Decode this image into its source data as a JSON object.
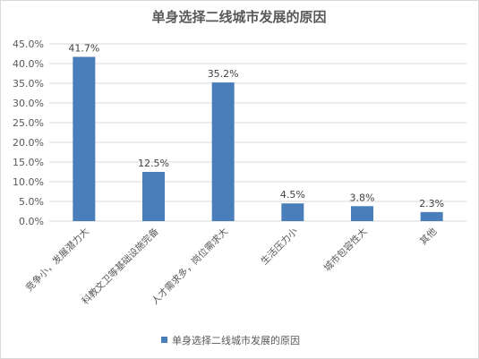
{
  "chart_data": {
    "type": "bar",
    "title": "单身选择二线城市发展的原因",
    "categories": [
      "竞争小，发展潜力大",
      "科教文卫等基础设施完备",
      "人才需求多，岗位需求大",
      "生活压力小",
      "城市包容性大",
      "其他"
    ],
    "series": [
      {
        "name": "单身选择二线城市发展的原因",
        "values": [
          41.7,
          12.5,
          35.2,
          4.5,
          3.8,
          2.3
        ],
        "labels": [
          "41.7%",
          "12.5%",
          "35.2%",
          "4.5%",
          "3.8%",
          "2.3%"
        ]
      }
    ],
    "ylim": [
      0,
      45
    ],
    "yticks": [
      0,
      5,
      10,
      15,
      20,
      25,
      30,
      35,
      40,
      45
    ],
    "ytick_labels": [
      "0.0%",
      "5.0%",
      "10.0%",
      "15.0%",
      "20.0%",
      "25.0%",
      "30.0%",
      "35.0%",
      "40.0%",
      "45.0%"
    ],
    "xlabel": "",
    "ylabel": "",
    "grid": true,
    "legend": "bottom",
    "colors": {
      "bar": "#4a7ebb",
      "grid": "#d9d9d9",
      "text": "#595959"
    }
  }
}
